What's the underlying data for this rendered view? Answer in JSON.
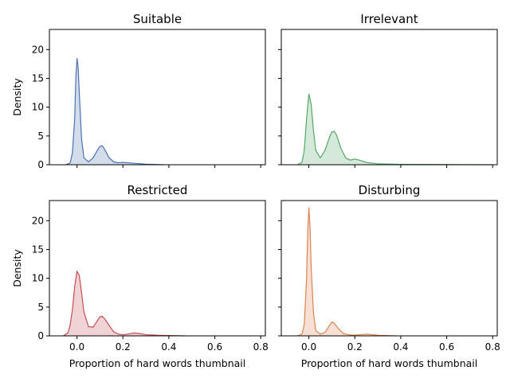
{
  "chart_data": [
    {
      "type": "area",
      "title": "Suitable",
      "xlabel": "",
      "ylabel": "Density",
      "color": "#4c72b0",
      "xlim": [
        -0.12,
        0.82
      ],
      "ylim": [
        0,
        23.5
      ],
      "xticks": [
        0.0,
        0.2,
        0.4,
        0.6,
        0.8
      ],
      "xtick_labels": [
        "",
        "",
        "",
        "",
        ""
      ],
      "yticks": [
        0,
        5,
        10,
        15,
        20
      ],
      "ytick_labels": [
        "0",
        "5",
        "10",
        "15",
        "20"
      ],
      "x": [
        -0.05,
        -0.03,
        -0.02,
        -0.01,
        -0.005,
        0.0,
        0.005,
        0.01,
        0.02,
        0.03,
        0.05,
        0.07,
        0.09,
        0.1,
        0.11,
        0.12,
        0.14,
        0.16,
        0.18,
        0.2,
        0.22,
        0.25,
        0.3,
        0.35,
        0.38
      ],
      "y": [
        0.0,
        0.3,
        2.0,
        8.0,
        15.0,
        18.5,
        17.0,
        12.5,
        4.5,
        1.2,
        0.5,
        1.2,
        2.6,
        3.2,
        3.3,
        2.7,
        1.2,
        0.5,
        0.35,
        0.4,
        0.35,
        0.25,
        0.1,
        0.03,
        0.0
      ]
    },
    {
      "type": "area",
      "title": "Irrelevant",
      "xlabel": "",
      "ylabel": "",
      "color": "#55a868",
      "xlim": [
        -0.12,
        0.82
      ],
      "ylim": [
        0,
        23.5
      ],
      "xticks": [
        0.0,
        0.2,
        0.4,
        0.6,
        0.8
      ],
      "xtick_labels": [
        "",
        "",
        "",
        "",
        ""
      ],
      "yticks": [
        0,
        5,
        10,
        15,
        20
      ],
      "ytick_labels": [
        "",
        "",
        "",
        "",
        ""
      ],
      "x": [
        -0.05,
        -0.03,
        -0.02,
        -0.01,
        0.0,
        0.01,
        0.02,
        0.03,
        0.05,
        0.07,
        0.09,
        0.1,
        0.11,
        0.12,
        0.14,
        0.16,
        0.18,
        0.2,
        0.22,
        0.25,
        0.3,
        0.4,
        0.5,
        0.6,
        0.7,
        0.8
      ],
      "y": [
        0.0,
        0.4,
        2.5,
        8.0,
        12.3,
        10.5,
        6.0,
        2.5,
        1.2,
        2.5,
        4.8,
        5.7,
        5.8,
        5.2,
        2.8,
        1.2,
        0.8,
        1.0,
        0.8,
        0.4,
        0.15,
        0.08,
        0.05,
        0.03,
        0.02,
        0.0
      ]
    },
    {
      "type": "area",
      "title": "Restricted",
      "xlabel": "Proportion of hard words thumbnail",
      "ylabel": "Density",
      "color": "#c44e52",
      "xlim": [
        -0.12,
        0.82
      ],
      "ylim": [
        0,
        23.5
      ],
      "xticks": [
        0.0,
        0.2,
        0.4,
        0.6,
        0.8
      ],
      "xtick_labels": [
        "0.0",
        "0.2",
        "0.4",
        "0.6",
        "0.8"
      ],
      "yticks": [
        0,
        5,
        10,
        15,
        20
      ],
      "ytick_labels": [
        "0",
        "5",
        "10",
        "15",
        "20"
      ],
      "x": [
        -0.06,
        -0.04,
        -0.03,
        -0.02,
        -0.01,
        0.0,
        0.01,
        0.02,
        0.03,
        0.05,
        0.07,
        0.09,
        0.1,
        0.11,
        0.12,
        0.14,
        0.16,
        0.18,
        0.2,
        0.22,
        0.25,
        0.28,
        0.3,
        0.35,
        0.4,
        0.45,
        0.47
      ],
      "y": [
        0.0,
        0.5,
        1.8,
        4.5,
        8.5,
        11.2,
        10.5,
        7.5,
        4.2,
        1.6,
        1.5,
        2.7,
        3.3,
        3.4,
        3.0,
        1.8,
        0.7,
        0.3,
        0.2,
        0.3,
        0.5,
        0.35,
        0.2,
        0.1,
        0.05,
        0.02,
        0.0
      ]
    },
    {
      "type": "area",
      "title": "Disturbing",
      "xlabel": "Proportion of hard words thumbnail",
      "ylabel": "",
      "color": "#dd8452",
      "xlim": [
        -0.12,
        0.82
      ],
      "ylim": [
        0,
        23.5
      ],
      "xticks": [
        0.0,
        0.2,
        0.4,
        0.6,
        0.8
      ],
      "xtick_labels": [
        "0.0",
        "0.2",
        "0.4",
        "0.6",
        "0.8"
      ],
      "yticks": [
        0,
        5,
        10,
        15,
        20
      ],
      "ytick_labels": [
        "",
        "",
        "",
        "",
        ""
      ],
      "x": [
        -0.05,
        -0.03,
        -0.02,
        -0.01,
        -0.005,
        0.0,
        0.005,
        0.01,
        0.02,
        0.03,
        0.05,
        0.07,
        0.09,
        0.1,
        0.11,
        0.13,
        0.15,
        0.18,
        0.2,
        0.25,
        0.3,
        0.35,
        0.38
      ],
      "y": [
        0.0,
        0.3,
        2.0,
        10.0,
        18.0,
        22.3,
        19.0,
        12.0,
        4.0,
        0.9,
        0.3,
        0.6,
        1.8,
        2.4,
        2.2,
        1.2,
        0.4,
        0.15,
        0.12,
        0.3,
        0.1,
        0.03,
        0.0
      ]
    }
  ]
}
